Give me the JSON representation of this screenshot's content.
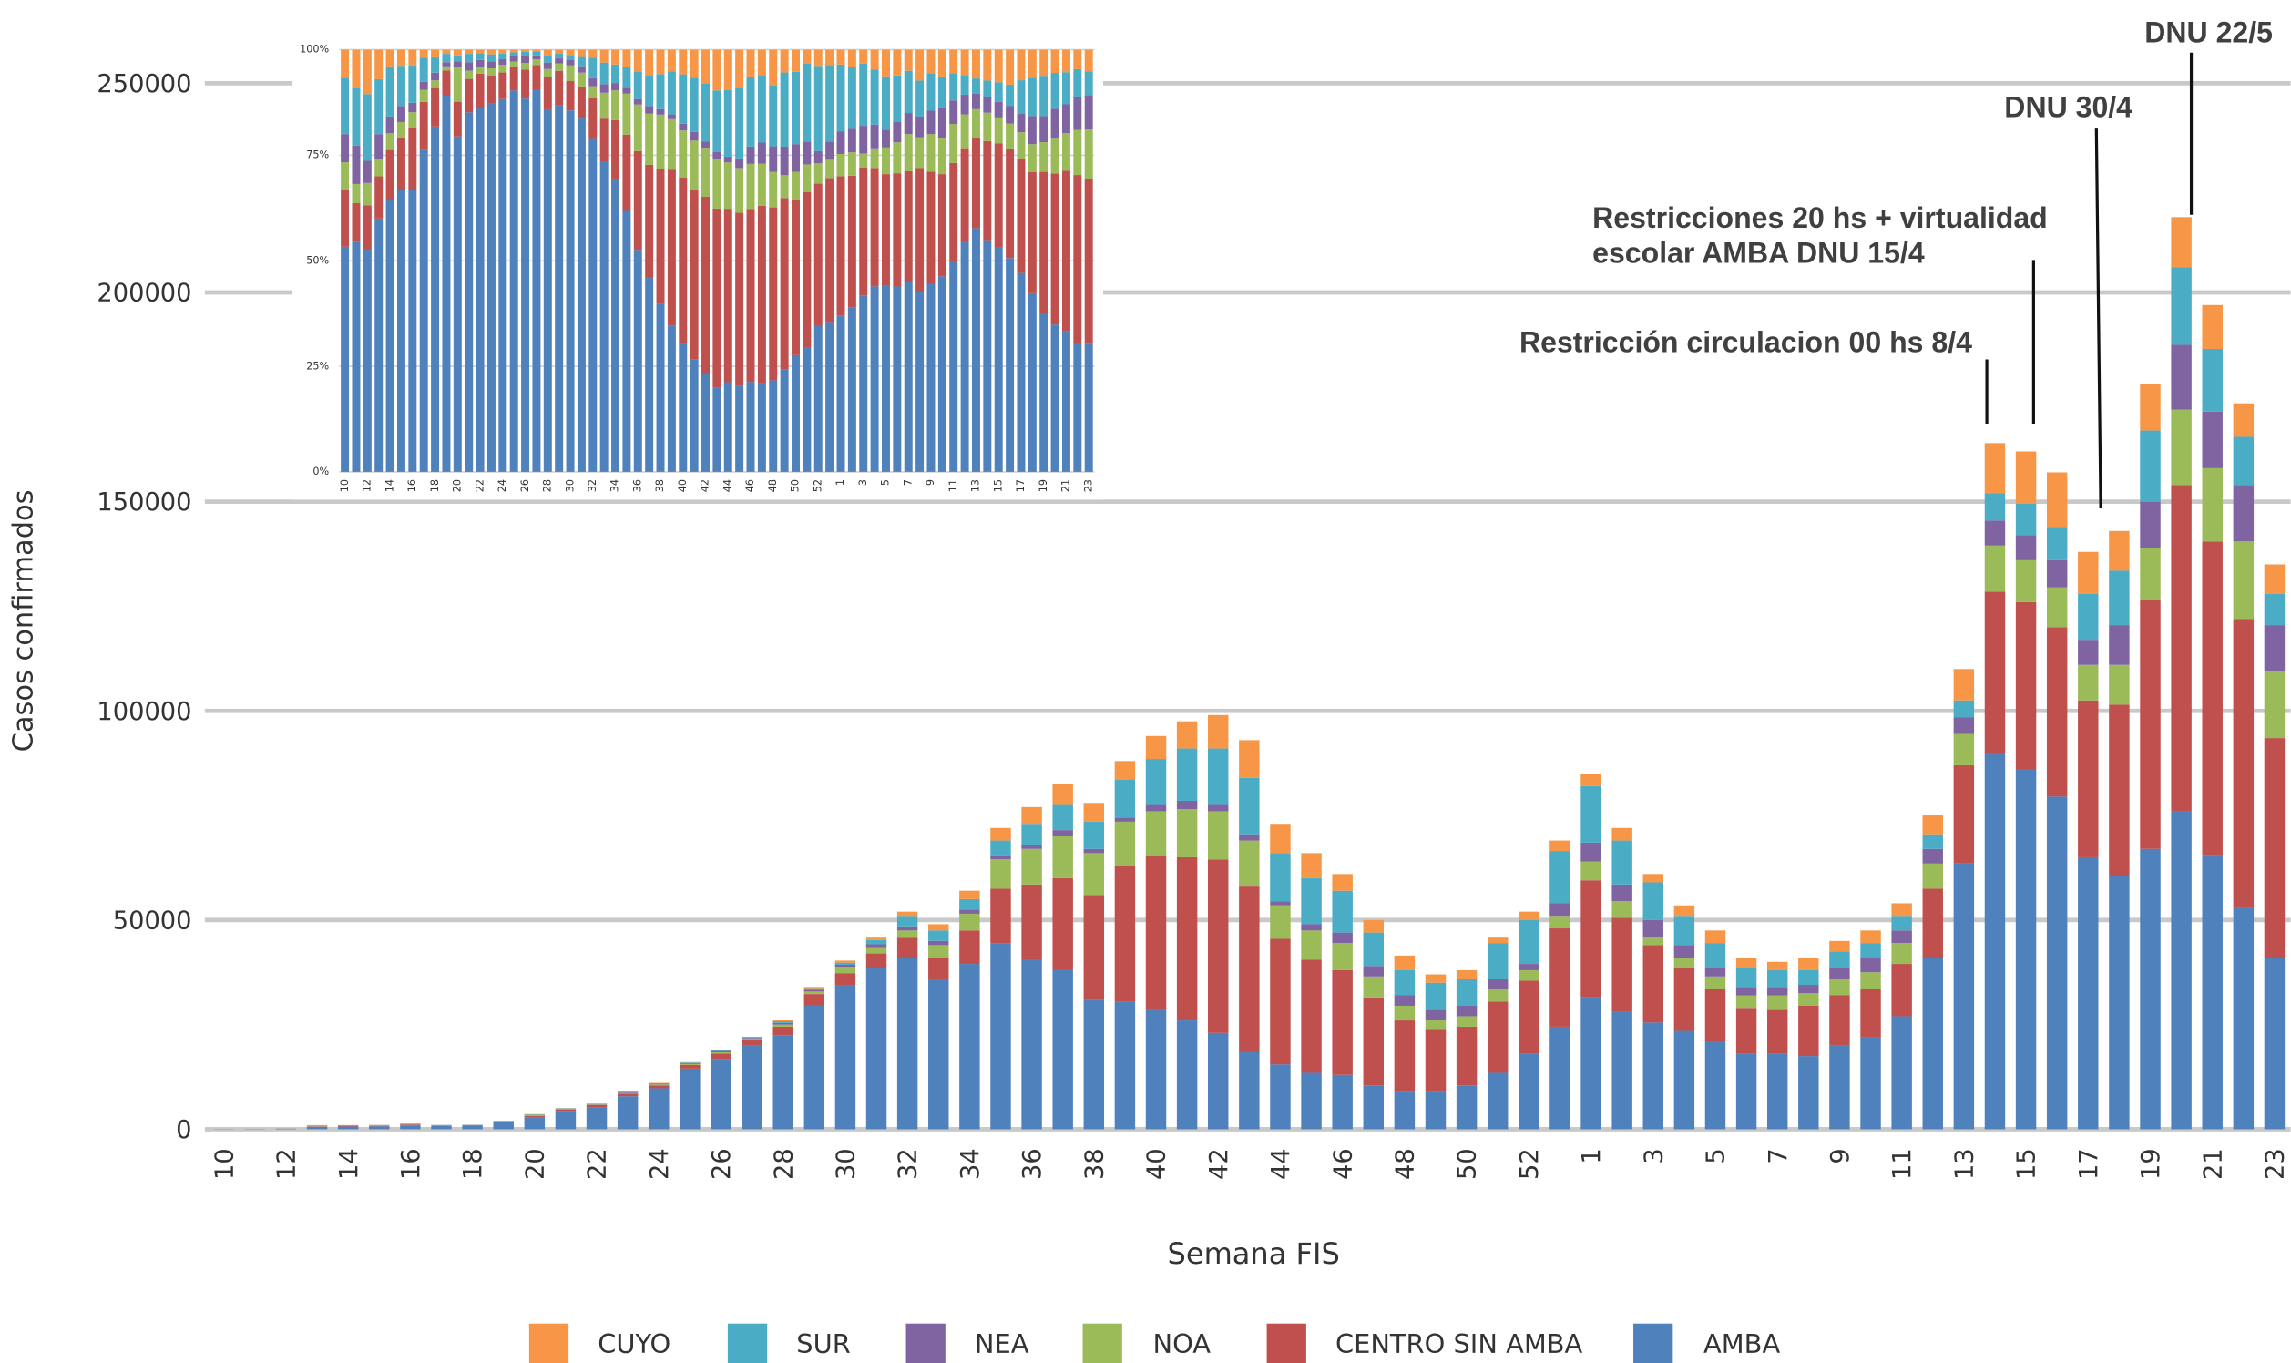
{
  "chart_data": [
    {
      "type": "bar",
      "stacking": "normal",
      "y_label": "Casos confirmados",
      "x_label": "Semana FIS",
      "categories": [
        "10",
        null,
        "12",
        null,
        "14",
        null,
        "16",
        null,
        "18",
        null,
        "20",
        null,
        "22",
        null,
        "24",
        null,
        "26",
        null,
        "28",
        null,
        "30",
        null,
        "32",
        null,
        "34",
        null,
        "36",
        null,
        "38",
        null,
        "40",
        null,
        "42",
        null,
        "44",
        null,
        "46",
        null,
        "48",
        null,
        "50",
        null,
        "52",
        null,
        "1",
        null,
        "3",
        null,
        "5",
        null,
        "7",
        null,
        "9",
        null,
        "11",
        null,
        "13",
        null,
        "15",
        null,
        "17",
        null,
        "19",
        null,
        "21",
        null,
        "23"
      ],
      "ylim": [
        0,
        250000
      ],
      "yticks": [
        0,
        50000,
        100000,
        150000,
        200000,
        250000
      ],
      "grid": true,
      "series": [
        {
          "name": "AMBA",
          "color": "#4f81bd",
          "values": [
            40,
            60,
            100,
            600,
            650,
            700,
            900,
            800,
            900,
            1800,
            2900,
            4300,
            5300,
            7900,
            9800,
            14500,
            16800,
            20000,
            22500,
            29500,
            34500,
            38500,
            41000,
            36000,
            39500,
            44500,
            40500,
            38000,
            31000,
            30500,
            28500,
            26000,
            23000,
            18500,
            15500,
            13500,
            13000,
            10500,
            9000,
            9000,
            10500,
            13500,
            18000,
            24500,
            31500,
            28000,
            25500,
            23500,
            21000,
            18000,
            18000,
            17500,
            20000,
            22000,
            27000,
            41000,
            63500,
            90000,
            86000,
            79500,
            65000,
            60500,
            67000,
            76000,
            65500,
            53000,
            41000
          ]
        },
        {
          "name": "CENTRO SIN AMBA",
          "color": "#c0504d",
          "values": [
            10,
            10,
            20,
            100,
            120,
            130,
            200,
            120,
            100,
            120,
            300,
            400,
            500,
            600,
            700,
            900,
            1300,
            1300,
            2000,
            2800,
            2800,
            3500,
            5000,
            5000,
            8000,
            13000,
            18000,
            22000,
            25000,
            32500,
            37000,
            39000,
            41500,
            39500,
            30000,
            27000,
            25000,
            21000,
            17000,
            15000,
            14000,
            17000,
            17500,
            23500,
            28000,
            22500,
            18500,
            15000,
            12500,
            11000,
            10500,
            12000,
            12000,
            11500,
            12500,
            16500,
            23500,
            38500,
            40000,
            40500,
            37500,
            41000,
            59500,
            78000,
            75000,
            69000,
            52500
          ]
        },
        {
          "name": "NOA",
          "color": "#9bbb59",
          "values": [
            5,
            5,
            10,
            40,
            40,
            40,
            50,
            30,
            20,
            20,
            300,
            100,
            100,
            150,
            200,
            200,
            300,
            300,
            500,
            600,
            1500,
            1500,
            1500,
            3000,
            4000,
            7000,
            8500,
            10000,
            10000,
            10500,
            10500,
            11500,
            11500,
            11000,
            8000,
            7000,
            6500,
            5000,
            3500,
            2000,
            2500,
            3000,
            2500,
            3000,
            4500,
            4000,
            2000,
            2500,
            3000,
            3000,
            3500,
            3000,
            4000,
            4000,
            5000,
            6000,
            7500,
            11000,
            10000,
            9500,
            8500,
            9500,
            12500,
            18000,
            17500,
            18500,
            16000
          ]
        },
        {
          "name": "NEA",
          "color": "#8064a2",
          "values": [
            5,
            10,
            10,
            60,
            40,
            40,
            30,
            20,
            20,
            20,
            50,
            100,
            100,
            150,
            150,
            200,
            300,
            200,
            400,
            400,
            500,
            700,
            1000,
            1000,
            1000,
            1000,
            1000,
            1500,
            1000,
            1000,
            1500,
            2000,
            1500,
            1500,
            1000,
            1500,
            2500,
            2500,
            2500,
            2500,
            2500,
            2500,
            1500,
            3000,
            4500,
            4000,
            4000,
            3000,
            2000,
            2000,
            2000,
            2000,
            2500,
            3500,
            3000,
            3500,
            4000,
            6000,
            6000,
            6500,
            6000,
            9500,
            11000,
            15500,
            13500,
            13500,
            11000
          ]
        },
        {
          "name": "SUR",
          "color": "#4bacc6",
          "values": [
            10,
            15,
            30,
            130,
            120,
            100,
            120,
            60,
            40,
            40,
            50,
            100,
            100,
            150,
            150,
            150,
            200,
            200,
            400,
            400,
            500,
            1000,
            2500,
            2500,
            2500,
            3500,
            5000,
            6000,
            6500,
            9000,
            11000,
            12500,
            13500,
            13500,
            11500,
            11000,
            10000,
            8000,
            6000,
            6500,
            6500,
            8500,
            10500,
            12500,
            13500,
            10500,
            9000,
            7000,
            6000,
            4500,
            4000,
            3500,
            4000,
            3500,
            3500,
            3500,
            4000,
            6500,
            7500,
            8000,
            11000,
            13000,
            17000,
            18500,
            15000,
            11500,
            7500
          ]
        },
        {
          "name": "CUYO",
          "color": "#f79646",
          "values": [
            5,
            10,
            20,
            70,
            40,
            40,
            50,
            20,
            20,
            20,
            50,
            50,
            50,
            100,
            100,
            100,
            100,
            100,
            400,
            300,
            500,
            800,
            1000,
            1500,
            2000,
            3000,
            4000,
            5000,
            4500,
            4500,
            5500,
            6500,
            8000,
            9000,
            7000,
            6000,
            4000,
            3000,
            3500,
            2000,
            2000,
            1500,
            2000,
            2500,
            3000,
            3000,
            2000,
            2500,
            3000,
            2500,
            2000,
            3000,
            2500,
            3000,
            3000,
            4500,
            7500,
            12000,
            12500,
            13000,
            10000,
            9500,
            11000,
            12000,
            10500,
            8000,
            7000
          ]
        }
      ],
      "annotations": [
        {
          "text": "Restricción circulacion 00 hs  8/4"
        },
        {
          "text": [
            "Restricciones  20  hs  +  virtualidad",
            "escolar AMBA DNU  15/4"
          ]
        },
        {
          "text": "DNU 30/4"
        },
        {
          "text": "DNU 22/5"
        }
      ]
    },
    {
      "type": "bar",
      "stacking": "percent",
      "source": "chart_data.0",
      "ylim": [
        0,
        100
      ],
      "yticks": [
        {
          "value": 0,
          "label": "0%"
        },
        {
          "value": 25,
          "label": "25%"
        },
        {
          "value": 50,
          "label": "50%"
        },
        {
          "value": 75,
          "label": "75%"
        },
        {
          "value": 100,
          "label": "100%"
        }
      ],
      "grid": true
    }
  ]
}
